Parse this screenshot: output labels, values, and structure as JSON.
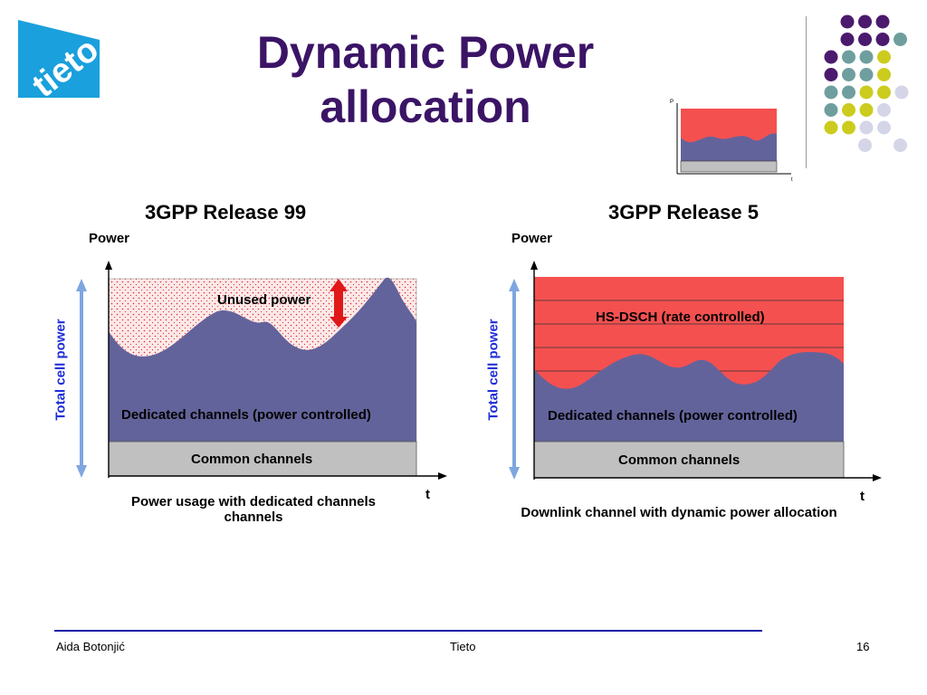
{
  "slide": {
    "title_line1": "Dynamic Power",
    "title_line2": "allocation",
    "logo_text": "tieto",
    "mini_chart": {
      "p_label": "P",
      "t_label": "t"
    },
    "footer": {
      "author": "Aida Botonjić",
      "company": "Tieto",
      "page": "16"
    }
  },
  "left": {
    "heading": "3GPP Release 99",
    "y_axis": "Power",
    "x_axis": "t",
    "total_label": "Total cell power",
    "unused_label": "Unused  power",
    "dedicated_label": "Dedicated channels (power controlled)",
    "common_label": "Common channels",
    "caption_line1": "Power usage with dedicated channels",
    "caption_line2": "channels"
  },
  "right": {
    "heading": "3GPP Release 5",
    "y_axis": "Power",
    "x_axis": "t",
    "total_label": "Total cell power",
    "hsdsch_label": "HS-DSCH (rate controlled)",
    "dedicated_label": "Dedicated channels (power controlled)",
    "common_label": "Common channels",
    "caption": "Downlink channel with dynamic power allocation"
  },
  "colors": {
    "title": "#3b1466",
    "dedicated": "#63639b",
    "common": "#c0c0c0",
    "hsdsch": "#f55050",
    "arrow": "#e01818",
    "total_arrow": "#7ea6e0",
    "logo_bg": "#1aa0dc",
    "dot_purple": "#4b1a6e",
    "dot_teal": "#6f9e9e",
    "dot_yellow": "#cccc1e",
    "dot_lilac": "#d5d5e8",
    "footer_line": "#1a1aa8"
  }
}
